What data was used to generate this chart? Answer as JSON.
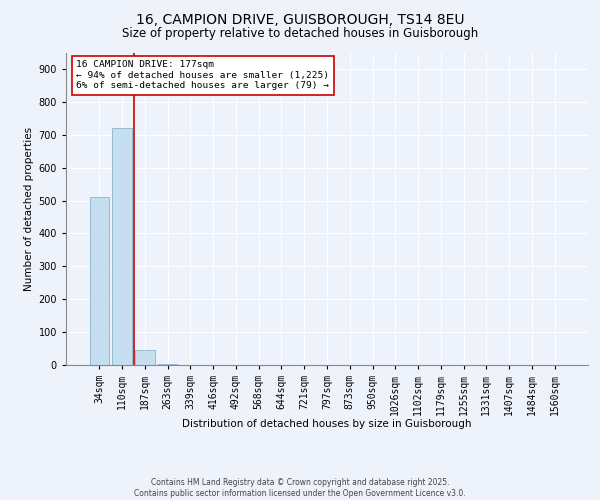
{
  "title_line1": "16, CAMPION DRIVE, GUISBOROUGH, TS14 8EU",
  "title_line2": "Size of property relative to detached houses in Guisborough",
  "xlabel": "Distribution of detached houses by size in Guisborough",
  "ylabel": "Number of detached properties",
  "categories": [
    "34sqm",
    "110sqm",
    "187sqm",
    "263sqm",
    "339sqm",
    "416sqm",
    "492sqm",
    "568sqm",
    "644sqm",
    "721sqm",
    "797sqm",
    "873sqm",
    "950sqm",
    "1026sqm",
    "1102sqm",
    "1179sqm",
    "1255sqm",
    "1331sqm",
    "1407sqm",
    "1484sqm",
    "1560sqm"
  ],
  "values": [
    510,
    720,
    45,
    2,
    1,
    0,
    0,
    0,
    0,
    0,
    0,
    0,
    0,
    0,
    0,
    0,
    0,
    0,
    0,
    0,
    0
  ],
  "bar_color": "#c5dff0",
  "bar_edge_color": "#8ab4cc",
  "vline_color": "#cc0000",
  "annotation_text": "16 CAMPION DRIVE: 177sqm\n← 94% of detached houses are smaller (1,225)\n6% of semi-detached houses are larger (79) →",
  "ylim_max": 950,
  "yticks": [
    0,
    100,
    200,
    300,
    400,
    500,
    600,
    700,
    800,
    900
  ],
  "background_color": "#eef2fb",
  "footer_line1": "Contains HM Land Registry data © Crown copyright and database right 2025.",
  "footer_line2": "Contains public sector information licensed under the Open Government Licence v3.0.",
  "title_fontsize": 10,
  "subtitle_fontsize": 8.5,
  "axis_label_fontsize": 7.5,
  "tick_fontsize": 7,
  "footer_fontsize": 5.5
}
